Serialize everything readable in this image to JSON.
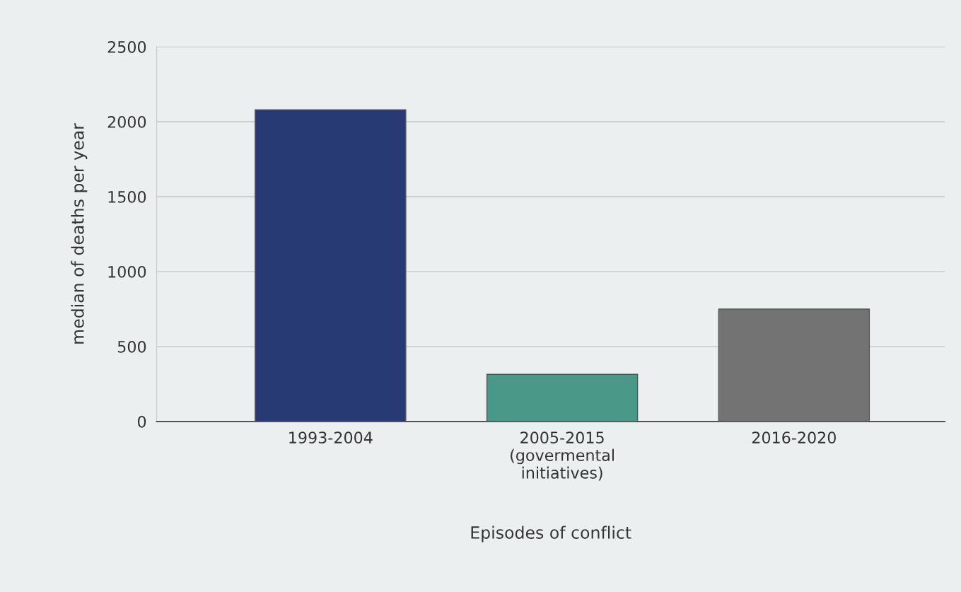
{
  "chart_data": {
    "type": "bar",
    "categories": [
      "1993-2004",
      "2005-2015\n(govermental\ninitiatives)",
      "2016-2020"
    ],
    "values": [
      2080,
      315,
      750
    ],
    "colors": [
      "#273a73",
      "#4a9888",
      "#737373"
    ],
    "xlabel": "Episodes of conflict",
    "ylabel": "median of deaths per year",
    "ylim": [
      0,
      2500
    ],
    "yticks": [
      0,
      500,
      1000,
      1500,
      2000,
      2500
    ],
    "grid": "y",
    "legend": false
  }
}
